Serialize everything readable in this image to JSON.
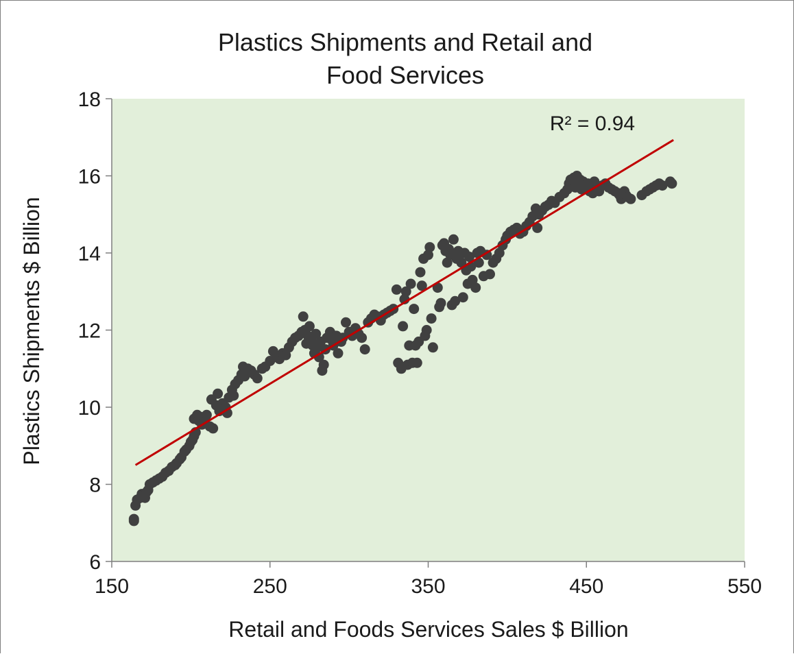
{
  "chart_data": {
    "type": "scatter",
    "title_lines": [
      "Plastics Shipments and Retail and",
      "Food Services"
    ],
    "xlabel": "Retail and Foods Services Sales $ Billion",
    "ylabel": "Plastics Shipments $ Billion",
    "xlim": [
      150,
      550
    ],
    "ylim": [
      6,
      18
    ],
    "xticks": [
      "150",
      "250",
      "350",
      "450",
      "550"
    ],
    "yticks": [
      "6",
      "8",
      "10",
      "12",
      "14",
      "16",
      "18"
    ],
    "grid": false,
    "legend": "none",
    "colors": {
      "plot_background": "#e2efda",
      "points": "#404040",
      "trendline": "#c00000"
    },
    "trendline": {
      "x": [
        165,
        505
      ],
      "y": [
        8.5,
        16.93
      ],
      "label": "R² = 0.94"
    },
    "series": [
      {
        "points": [
          [
            164,
            7.05
          ],
          [
            164,
            7.1
          ],
          [
            165,
            7.45
          ],
          [
            166,
            7.6
          ],
          [
            168,
            7.65
          ],
          [
            169,
            7.75
          ],
          [
            170,
            7.7
          ],
          [
            171,
            7.65
          ],
          [
            172,
            7.8
          ],
          [
            173,
            7.85
          ],
          [
            174,
            8.0
          ],
          [
            176,
            8.05
          ],
          [
            178,
            8.1
          ],
          [
            180,
            8.15
          ],
          [
            182,
            8.2
          ],
          [
            184,
            8.3
          ],
          [
            186,
            8.35
          ],
          [
            188,
            8.45
          ],
          [
            190,
            8.5
          ],
          [
            191,
            8.55
          ],
          [
            193,
            8.65
          ],
          [
            194,
            8.7
          ],
          [
            196,
            8.85
          ],
          [
            197,
            8.9
          ],
          [
            199,
            9.0
          ],
          [
            200,
            9.1
          ],
          [
            201,
            9.15
          ],
          [
            202,
            9.25
          ],
          [
            203,
            9.35
          ],
          [
            202,
            9.7
          ],
          [
            204,
            9.8
          ],
          [
            205,
            9.65
          ],
          [
            206,
            9.75
          ],
          [
            207,
            9.55
          ],
          [
            208,
            9.6
          ],
          [
            209,
            9.7
          ],
          [
            210,
            9.8
          ],
          [
            212,
            9.5
          ],
          [
            214,
            9.45
          ],
          [
            213,
            10.2
          ],
          [
            216,
            10.05
          ],
          [
            217,
            10.35
          ],
          [
            218,
            9.9
          ],
          [
            220,
            10.1
          ],
          [
            222,
            10.0
          ],
          [
            223,
            9.85
          ],
          [
            224,
            10.25
          ],
          [
            226,
            10.45
          ],
          [
            227,
            10.3
          ],
          [
            228,
            10.6
          ],
          [
            230,
            10.7
          ],
          [
            232,
            10.85
          ],
          [
            234,
            10.8
          ],
          [
            233,
            11.05
          ],
          [
            236,
            11.0
          ],
          [
            238,
            10.95
          ],
          [
            240,
            10.85
          ],
          [
            242,
            10.75
          ],
          [
            245,
            11.0
          ],
          [
            247,
            11.05
          ],
          [
            250,
            11.2
          ],
          [
            252,
            11.45
          ],
          [
            254,
            11.3
          ],
          [
            256,
            11.25
          ],
          [
            258,
            11.4
          ],
          [
            260,
            11.35
          ],
          [
            262,
            11.55
          ],
          [
            264,
            11.7
          ],
          [
            266,
            11.8
          ],
          [
            268,
            11.85
          ],
          [
            270,
            11.95
          ],
          [
            271,
            12.35
          ],
          [
            272,
            12.0
          ],
          [
            273,
            11.65
          ],
          [
            274,
            11.85
          ],
          [
            275,
            12.1
          ],
          [
            276,
            11.75
          ],
          [
            277,
            11.6
          ],
          [
            278,
            11.4
          ],
          [
            279,
            11.9
          ],
          [
            280,
            11.55
          ],
          [
            281,
            11.3
          ],
          [
            282,
            11.7
          ],
          [
            283,
            10.95
          ],
          [
            284,
            11.1
          ],
          [
            285,
            11.5
          ],
          [
            286,
            11.8
          ],
          [
            288,
            11.95
          ],
          [
            289,
            11.75
          ],
          [
            290,
            11.6
          ],
          [
            292,
            11.85
          ],
          [
            293,
            11.4
          ],
          [
            295,
            11.7
          ],
          [
            296,
            11.8
          ],
          [
            298,
            12.2
          ],
          [
            300,
            11.95
          ],
          [
            302,
            11.85
          ],
          [
            304,
            12.05
          ],
          [
            306,
            11.9
          ],
          [
            308,
            11.8
          ],
          [
            310,
            11.5
          ],
          [
            312,
            12.2
          ],
          [
            314,
            12.3
          ],
          [
            316,
            12.4
          ],
          [
            318,
            12.35
          ],
          [
            320,
            12.25
          ],
          [
            322,
            12.4
          ],
          [
            324,
            12.45
          ],
          [
            326,
            12.5
          ],
          [
            328,
            12.55
          ],
          [
            330,
            13.05
          ],
          [
            331,
            11.15
          ],
          [
            333,
            11.0
          ],
          [
            334,
            12.1
          ],
          [
            335,
            12.8
          ],
          [
            336,
            13.0
          ],
          [
            337,
            11.1
          ],
          [
            338,
            11.6
          ],
          [
            339,
            13.2
          ],
          [
            340,
            11.15
          ],
          [
            341,
            12.55
          ],
          [
            342,
            11.6
          ],
          [
            343,
            11.15
          ],
          [
            344,
            11.7
          ],
          [
            345,
            13.5
          ],
          [
            346,
            13.15
          ],
          [
            347,
            13.85
          ],
          [
            348,
            11.85
          ],
          [
            349,
            12.0
          ],
          [
            350,
            13.95
          ],
          [
            351,
            14.15
          ],
          [
            352,
            12.3
          ],
          [
            353,
            11.55
          ],
          [
            356,
            13.1
          ],
          [
            357,
            12.6
          ],
          [
            358,
            12.7
          ],
          [
            359,
            14.2
          ],
          [
            360,
            14.25
          ],
          [
            361,
            14.05
          ],
          [
            362,
            13.75
          ],
          [
            363,
            14.1
          ],
          [
            364,
            13.95
          ],
          [
            365,
            12.65
          ],
          [
            366,
            14.35
          ],
          [
            367,
            12.75
          ],
          [
            368,
            13.85
          ],
          [
            369,
            14.05
          ],
          [
            370,
            13.95
          ],
          [
            371,
            13.75
          ],
          [
            372,
            12.85
          ],
          [
            373,
            14.0
          ],
          [
            374,
            13.55
          ],
          [
            375,
            13.2
          ],
          [
            376,
            13.9
          ],
          [
            377,
            13.65
          ],
          [
            378,
            13.3
          ],
          [
            380,
            13.1
          ],
          [
            381,
            14.0
          ],
          [
            382,
            13.75
          ],
          [
            383,
            14.05
          ],
          [
            385,
            13.4
          ],
          [
            387,
            13.95
          ],
          [
            389,
            13.45
          ],
          [
            391,
            13.75
          ],
          [
            393,
            13.85
          ],
          [
            395,
            14.0
          ],
          [
            397,
            14.2
          ],
          [
            399,
            14.35
          ],
          [
            400,
            14.45
          ],
          [
            402,
            14.55
          ],
          [
            404,
            14.6
          ],
          [
            406,
            14.65
          ],
          [
            408,
            14.5
          ],
          [
            410,
            14.55
          ],
          [
            412,
            14.7
          ],
          [
            414,
            14.8
          ],
          [
            416,
            14.95
          ],
          [
            418,
            15.15
          ],
          [
            419,
            14.65
          ],
          [
            420,
            15.0
          ],
          [
            422,
            15.1
          ],
          [
            424,
            15.2
          ],
          [
            426,
            15.25
          ],
          [
            428,
            15.35
          ],
          [
            430,
            15.3
          ],
          [
            433,
            15.45
          ],
          [
            436,
            15.55
          ],
          [
            438,
            15.65
          ],
          [
            439,
            15.8
          ],
          [
            440,
            15.9
          ],
          [
            441,
            15.75
          ],
          [
            442,
            15.95
          ],
          [
            443,
            15.7
          ],
          [
            444,
            16.0
          ],
          [
            445,
            15.8
          ],
          [
            446,
            15.9
          ],
          [
            447,
            15.65
          ],
          [
            448,
            15.85
          ],
          [
            449,
            15.75
          ],
          [
            450,
            15.7
          ],
          [
            451,
            15.8
          ],
          [
            452,
            15.6
          ],
          [
            453,
            15.75
          ],
          [
            454,
            15.55
          ],
          [
            455,
            15.85
          ],
          [
            456,
            15.65
          ],
          [
            457,
            15.7
          ],
          [
            458,
            15.6
          ],
          [
            460,
            15.75
          ],
          [
            462,
            15.8
          ],
          [
            464,
            15.7
          ],
          [
            466,
            15.65
          ],
          [
            468,
            15.6
          ],
          [
            470,
            15.55
          ],
          [
            471,
            15.5
          ],
          [
            472,
            15.4
          ],
          [
            473,
            15.45
          ],
          [
            474,
            15.6
          ],
          [
            475,
            15.5
          ],
          [
            476,
            15.45
          ],
          [
            478,
            15.4
          ],
          [
            485,
            15.5
          ],
          [
            488,
            15.6
          ],
          [
            490,
            15.65
          ],
          [
            492,
            15.7
          ],
          [
            494,
            15.75
          ],
          [
            496,
            15.8
          ],
          [
            498,
            15.75
          ],
          [
            503,
            15.85
          ],
          [
            504,
            15.8
          ]
        ]
      }
    ]
  }
}
